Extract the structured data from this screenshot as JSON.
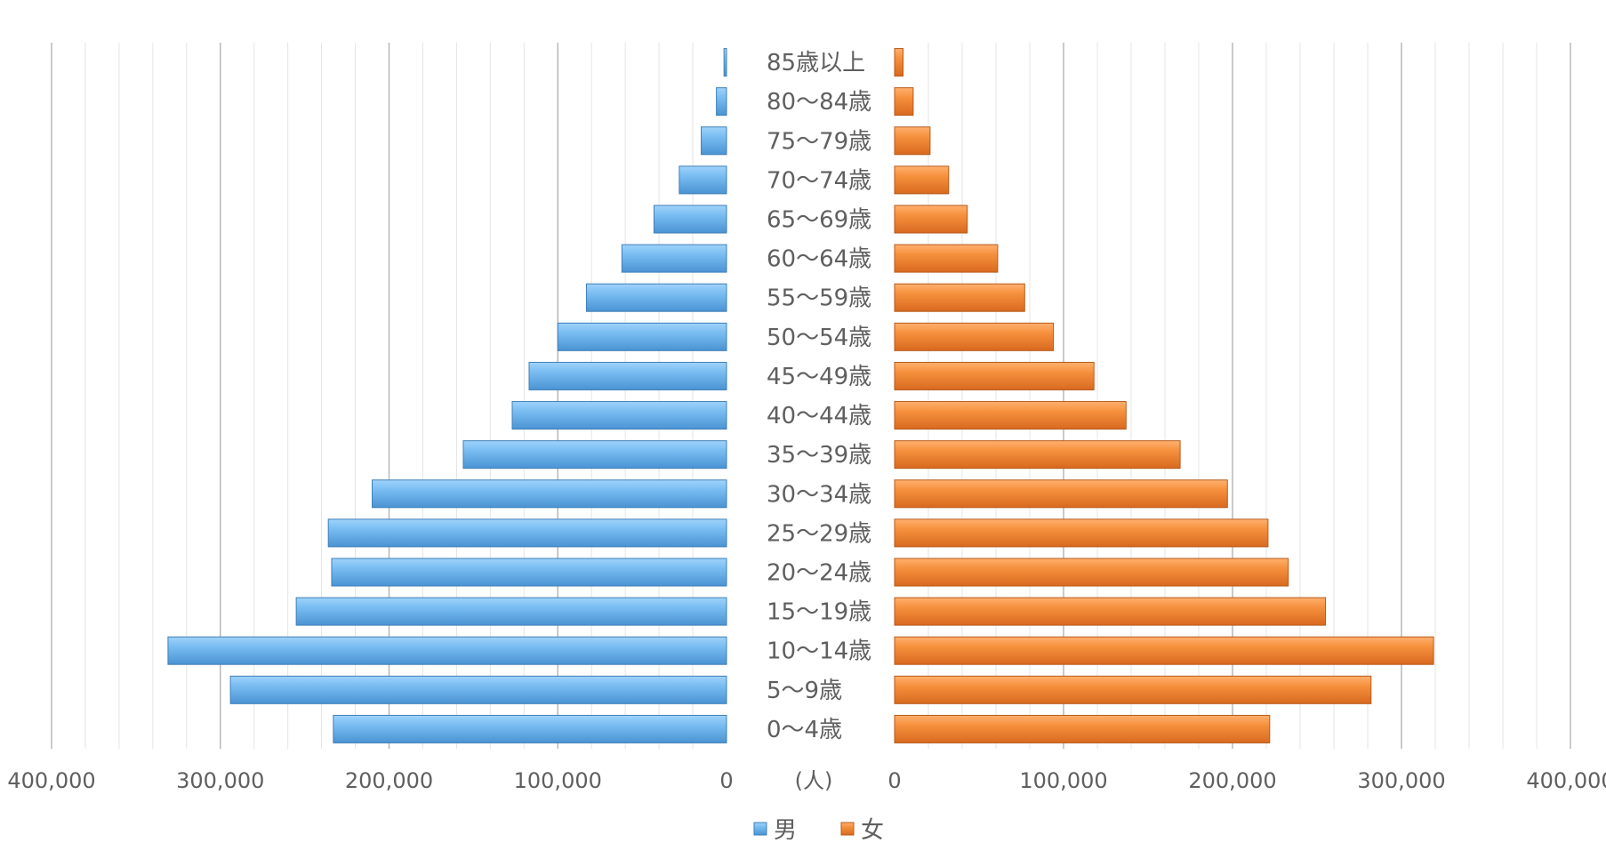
{
  "chart_data": {
    "type": "bar",
    "orientation": "horizontal",
    "variant": "population-pyramid",
    "categories": [
      "0〜4歳",
      "5〜9歳",
      "10〜14歳",
      "15〜19歳",
      "20〜24歳",
      "25〜29歳",
      "30〜34歳",
      "35〜39歳",
      "40〜44歳",
      "45〜49歳",
      "50〜54歳",
      "55〜59歳",
      "60〜64歳",
      "65〜69歳",
      "70〜74歳",
      "75〜79歳",
      "80〜84歳",
      "85歳以上"
    ],
    "series": [
      {
        "name": "男",
        "side": "left",
        "color": "#5aa9e6",
        "values": [
          233000,
          294000,
          331000,
          255000,
          234000,
          236000,
          210000,
          156000,
          127000,
          117000,
          100000,
          83000,
          62000,
          43000,
          28000,
          15000,
          6000,
          1500
        ]
      },
      {
        "name": "女",
        "side": "right",
        "color": "#ee8433",
        "values": [
          222000,
          282000,
          319000,
          255000,
          233000,
          221000,
          197000,
          169000,
          137000,
          118000,
          94000,
          77000,
          61000,
          43000,
          32000,
          21000,
          11000,
          5000
        ]
      }
    ],
    "xlim": [
      0,
      400000
    ],
    "tick_values": [
      0,
      100000,
      200000,
      300000,
      400000
    ],
    "tick_labels": [
      "0",
      "100,000",
      "200,000",
      "300,000",
      "400,000"
    ],
    "unit_label": "(人)",
    "grid": true,
    "legend_position": "bottom-center"
  }
}
